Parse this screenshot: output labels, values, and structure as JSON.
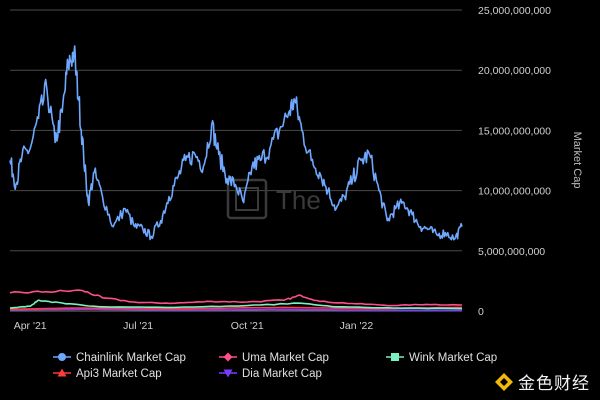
{
  "chart_data": {
    "type": "line",
    "title": "",
    "xlabel": "",
    "ylabel": "Market Cap",
    "x_ticks": [
      "Apr '21",
      "Jul '21",
      "Oct '21",
      "Jan '22"
    ],
    "x_range": [
      "2021-03-15",
      "2022-03-31"
    ],
    "ylim": [
      0,
      25000000000
    ],
    "y_ticks": [
      "0",
      "5,000,000,000",
      "10,000,000,000",
      "15,000,000,000",
      "20,000,000,000",
      "25,000,000,000"
    ],
    "grid": true,
    "legend_position": "bottom",
    "series": [
      {
        "name": "Chainlink Market Cap",
        "color": "#6ea8ff",
        "marker": "circle",
        "x": [
          "2021-03-15",
          "2021-03-20",
          "2021-03-25",
          "2021-04-01",
          "2021-04-08",
          "2021-04-15",
          "2021-04-22",
          "2021-04-28",
          "2021-05-03",
          "2021-05-08",
          "2021-05-12",
          "2021-05-16",
          "2021-05-20",
          "2021-05-25",
          "2021-06-01",
          "2021-06-10",
          "2021-06-20",
          "2021-06-28",
          "2021-07-05",
          "2021-07-12",
          "2021-07-20",
          "2021-07-27",
          "2021-08-03",
          "2021-08-10",
          "2021-08-18",
          "2021-08-25",
          "2021-09-01",
          "2021-09-07",
          "2021-09-14",
          "2021-09-21",
          "2021-09-28",
          "2021-10-05",
          "2021-10-12",
          "2021-10-20",
          "2021-10-28",
          "2021-11-05",
          "2021-11-10",
          "2021-11-16",
          "2021-11-24",
          "2021-12-01",
          "2021-12-08",
          "2021-12-15",
          "2021-12-22",
          "2021-12-29",
          "2022-01-05",
          "2022-01-12",
          "2022-01-20",
          "2022-01-27",
          "2022-02-03",
          "2022-02-10",
          "2022-02-17",
          "2022-02-24",
          "2022-03-03",
          "2022-03-10",
          "2022-03-17",
          "2022-03-25",
          "2022-03-31"
        ],
        "values": [
          12500000000,
          10500000000,
          12800000000,
          13500000000,
          16000000000,
          18500000000,
          14000000000,
          16500000000,
          20500000000,
          21500000000,
          17500000000,
          13000000000,
          9000000000,
          11500000000,
          9500000000,
          7000000000,
          8500000000,
          7000000000,
          6800000000,
          6200000000,
          7500000000,
          9500000000,
          11000000000,
          12500000000,
          13000000000,
          12000000000,
          15500000000,
          13000000000,
          11000000000,
          10500000000,
          9000000000,
          12000000000,
          12500000000,
          13500000000,
          15000000000,
          16500000000,
          17500000000,
          15000000000,
          12500000000,
          11500000000,
          10000000000,
          8500000000,
          9500000000,
          11000000000,
          12500000000,
          13000000000,
          10000000000,
          7500000000,
          8500000000,
          9000000000,
          8000000000,
          7000000000,
          6800000000,
          6300000000,
          6500000000,
          6000000000,
          7000000000
        ]
      },
      {
        "name": "Uma Market Cap",
        "color": "#ff4f8b",
        "marker": "diamond",
        "x": [
          "2021-03-15",
          "2021-04-15",
          "2021-05-15",
          "2021-06-01",
          "2021-07-01",
          "2021-08-01",
          "2021-09-01",
          "2021-10-01",
          "2021-11-01",
          "2021-11-15",
          "2021-12-01",
          "2022-01-01",
          "2022-02-01",
          "2022-03-01",
          "2022-03-31"
        ],
        "values": [
          1500000000,
          1600000000,
          1700000000,
          1100000000,
          700000000,
          650000000,
          800000000,
          750000000,
          900000000,
          1300000000,
          800000000,
          600000000,
          450000000,
          550000000,
          500000000
        ]
      },
      {
        "name": "Wink Market Cap",
        "color": "#79f2c0",
        "marker": "square",
        "x": [
          "2021-03-15",
          "2021-04-01",
          "2021-04-08",
          "2021-05-01",
          "2021-06-01",
          "2021-08-01",
          "2021-10-01",
          "2021-11-15",
          "2021-12-15",
          "2022-02-01",
          "2022-03-31"
        ],
        "values": [
          250000000,
          400000000,
          900000000,
          600000000,
          350000000,
          300000000,
          450000000,
          650000000,
          350000000,
          250000000,
          200000000
        ]
      },
      {
        "name": "Api3 Market Cap",
        "color": "#ff3b3b",
        "marker": "triangle",
        "x": [
          "2021-03-15",
          "2021-05-15",
          "2021-08-01",
          "2021-11-01",
          "2022-01-15",
          "2022-03-01",
          "2022-03-31"
        ],
        "values": [
          150000000,
          250000000,
          180000000,
          300000000,
          200000000,
          250000000,
          300000000
        ]
      },
      {
        "name": "Dia Market Cap",
        "color": "#7b3cff",
        "marker": "inverted-triangle",
        "x": [
          "2021-03-15",
          "2021-05-15",
          "2021-08-01",
          "2021-11-01",
          "2022-01-15",
          "2022-03-31"
        ],
        "values": [
          100000000,
          150000000,
          80000000,
          120000000,
          70000000,
          60000000
        ]
      }
    ]
  },
  "watermark": {
    "text": "The",
    "icon": "theblock-logo-icon"
  },
  "brand": {
    "text": "金色财经",
    "icon": "jinse-logo-icon",
    "color": "#f0b90b"
  }
}
